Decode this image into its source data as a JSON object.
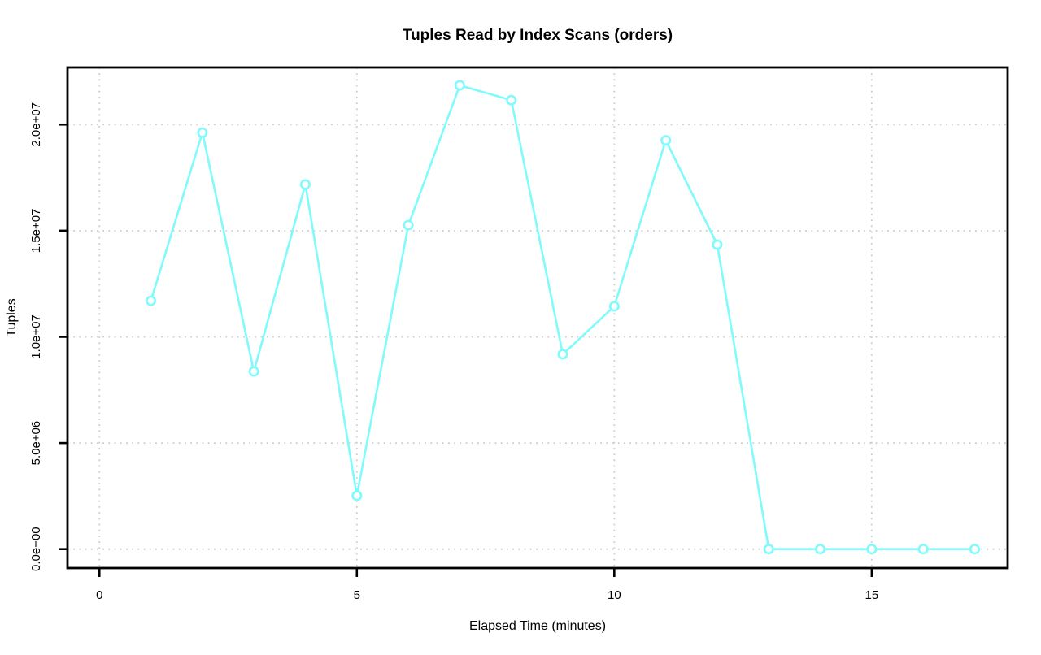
{
  "chart_data": {
    "type": "line",
    "title": "Tuples Read by Index Scans (orders)",
    "xlabel": "Elapsed Time (minutes)",
    "ylabel": "Tuples",
    "x": [
      1,
      2,
      3,
      4,
      5,
      6,
      7,
      8,
      9,
      10,
      11,
      12,
      13,
      14,
      15,
      16,
      17
    ],
    "y": [
      11700000,
      19620000,
      8370000,
      17180000,
      2520000,
      15260000,
      21850000,
      21150000,
      9180000,
      11440000,
      19260000,
      14340000,
      0,
      0,
      0,
      0,
      0
    ],
    "xlim": [
      -0.62,
      17.64
    ],
    "ylim": [
      -892000,
      22690000
    ],
    "x_ticks": [
      0,
      5,
      10,
      15
    ],
    "x_tick_labels": [
      "0",
      "5",
      "10",
      "15"
    ],
    "y_ticks": [
      0,
      5000000,
      10000000,
      15000000,
      20000000
    ],
    "y_tick_labels": [
      "0.0e+00",
      "5.0e+06",
      "1.0e+07",
      "1.5e+07",
      "2.0e+07"
    ],
    "grid": true,
    "legend": "none",
    "line_color": "#80FAFA",
    "marker": "open-circle",
    "grid_color": "#cccccc",
    "axis_color": "#000000",
    "background": "#ffffff"
  }
}
